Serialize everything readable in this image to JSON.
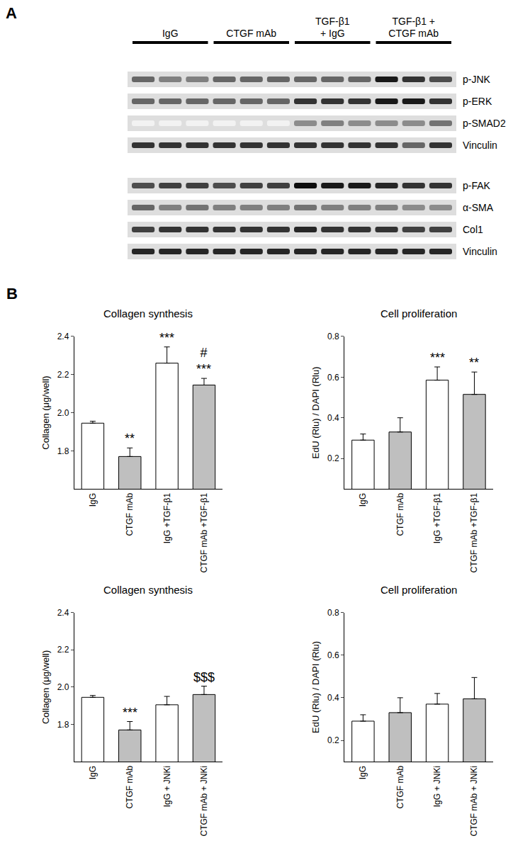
{
  "panel_labels": [
    "A",
    "B"
  ],
  "blot": {
    "groups": [
      {
        "label": [
          "IgG"
        ],
        "lanes": 3
      },
      {
        "label": [
          "CTGF mAb"
        ],
        "lanes": 3
      },
      {
        "label": [
          "TGF-β1",
          "+ IgG"
        ],
        "lanes": 3
      },
      {
        "label": [
          "TGF-β1 +",
          "CTGF mAb"
        ],
        "lanes": 3
      }
    ],
    "blocks": [
      {
        "rows": [
          {
            "label": "p-JNK",
            "intensity": [
              0.6,
              0.5,
              0.5,
              0.6,
              0.6,
              0.6,
              0.6,
              0.6,
              0.6,
              0.9,
              0.8,
              0.7
            ]
          },
          {
            "label": "p-ERK",
            "intensity": [
              0.6,
              0.6,
              0.6,
              0.6,
              0.6,
              0.6,
              0.8,
              0.8,
              0.8,
              0.9,
              0.9,
              0.8
            ]
          },
          {
            "label": "p-SMAD2",
            "intensity": [
              0.05,
              0.05,
              0.05,
              0.05,
              0.05,
              0.05,
              0.45,
              0.5,
              0.45,
              0.45,
              0.45,
              0.55
            ]
          },
          {
            "label": "Vinculin",
            "intensity": [
              0.8,
              0.8,
              0.8,
              0.8,
              0.8,
              0.8,
              0.8,
              0.8,
              0.8,
              0.8,
              0.6,
              0.8
            ]
          }
        ]
      },
      {
        "rows": [
          {
            "label": "p-FAK",
            "intensity": [
              0.7,
              0.75,
              0.75,
              0.7,
              0.75,
              0.75,
              0.95,
              0.9,
              0.9,
              0.85,
              0.8,
              0.8
            ]
          },
          {
            "label": "α-SMA",
            "intensity": [
              0.6,
              0.5,
              0.55,
              0.5,
              0.5,
              0.5,
              0.55,
              0.5,
              0.5,
              0.5,
              0.45,
              0.45
            ]
          },
          {
            "label": "Col1",
            "intensity": [
              0.75,
              0.8,
              0.8,
              0.8,
              0.8,
              0.8,
              0.85,
              0.8,
              0.8,
              0.8,
              0.75,
              0.75
            ]
          },
          {
            "label": "Vinculin",
            "intensity": [
              0.85,
              0.85,
              0.85,
              0.85,
              0.85,
              0.85,
              0.85,
              0.85,
              0.85,
              0.85,
              0.85,
              0.85
            ]
          }
        ]
      }
    ]
  },
  "chart_data": [
    {
      "type": "bar",
      "title": "Collagen synthesis",
      "y_label": "Collagen (μg/well)",
      "categories": [
        "IgG",
        "CTGF mAb",
        "IgG +TGF-β1",
        "CTGF mAb +TGF-β1"
      ],
      "values": [
        1.945,
        1.77,
        2.26,
        2.145
      ],
      "errors": [
        0.01,
        0.045,
        0.085,
        0.035
      ],
      "colors": [
        "#ffffff",
        "#bfbfbf",
        "#ffffff",
        "#bfbfbf"
      ],
      "ylim": [
        1.6,
        2.4
      ],
      "yticks": [
        1.8,
        {
          "value": 2,
          "label": "2.0"
        },
        2.2,
        2.4
      ],
      "annotations": [
        {
          "category": "CTGF mAb",
          "text": [
            "**"
          ]
        },
        {
          "category": "IgG +TGF-β1",
          "text": [
            "***"
          ]
        },
        {
          "category": "CTGF mAb +TGF-β1",
          "text": [
            "#",
            "***"
          ]
        }
      ]
    },
    {
      "type": "bar",
      "title": "Cell proliferation",
      "y_label": "EdU (Rlu) / DAPI (Rlu)",
      "categories": [
        "IgG",
        "CTGF mAb",
        "IgG +TGF-β1",
        "CTGF mAb +TGF-β1"
      ],
      "values": [
        0.29,
        0.33,
        0.585,
        0.515
      ],
      "errors": [
        0.03,
        0.07,
        0.065,
        0.11
      ],
      "colors": [
        "#ffffff",
        "#bfbfbf",
        "#ffffff",
        "#bfbfbf"
      ],
      "ylim": [
        0.05,
        0.8
      ],
      "yticks": [
        0.2,
        0.4,
        0.6,
        0.8
      ],
      "annotations": [
        {
          "category": "IgG +TGF-β1",
          "text": [
            "***"
          ]
        },
        {
          "category": "CTGF mAb +TGF-β1",
          "text": [
            "**"
          ]
        }
      ]
    },
    {
      "type": "bar",
      "title": "Collagen synthesis",
      "y_label": "Collagen (μg/well)",
      "categories": [
        "IgG",
        "CTGF mAb",
        "IgG + JNKi",
        "CTGF mAb + JNKi"
      ],
      "values": [
        1.945,
        1.77,
        1.905,
        1.96
      ],
      "errors": [
        0.01,
        0.045,
        0.045,
        0.045
      ],
      "colors": [
        "#ffffff",
        "#bfbfbf",
        "#ffffff",
        "#bfbfbf"
      ],
      "ylim": [
        1.6,
        2.4
      ],
      "yticks": [
        1.8,
        {
          "value": 2,
          "label": "2.0"
        },
        2.2,
        2.4
      ],
      "annotations": [
        {
          "category": "CTGF mAb",
          "text": [
            "***"
          ]
        },
        {
          "category": "CTGF mAb + JNKi",
          "text": [
            "$$$"
          ]
        }
      ]
    },
    {
      "type": "bar",
      "title": "Cell proliferation",
      "y_label": "EdU (Rlu) / DAPI (Rlu)",
      "categories": [
        "IgG",
        "CTGF mAb",
        "IgG + JNKi",
        "CTGF mAb + JNKi"
      ],
      "values": [
        0.29,
        0.33,
        0.37,
        0.395
      ],
      "errors": [
        0.03,
        0.07,
        0.05,
        0.1
      ],
      "colors": [
        "#ffffff",
        "#bfbfbf",
        "#ffffff",
        "#bfbfbf"
      ],
      "ylim": [
        0.1,
        0.8
      ],
      "yticks": [
        0.2,
        0.4,
        0.6,
        0.8
      ],
      "annotations": []
    }
  ]
}
